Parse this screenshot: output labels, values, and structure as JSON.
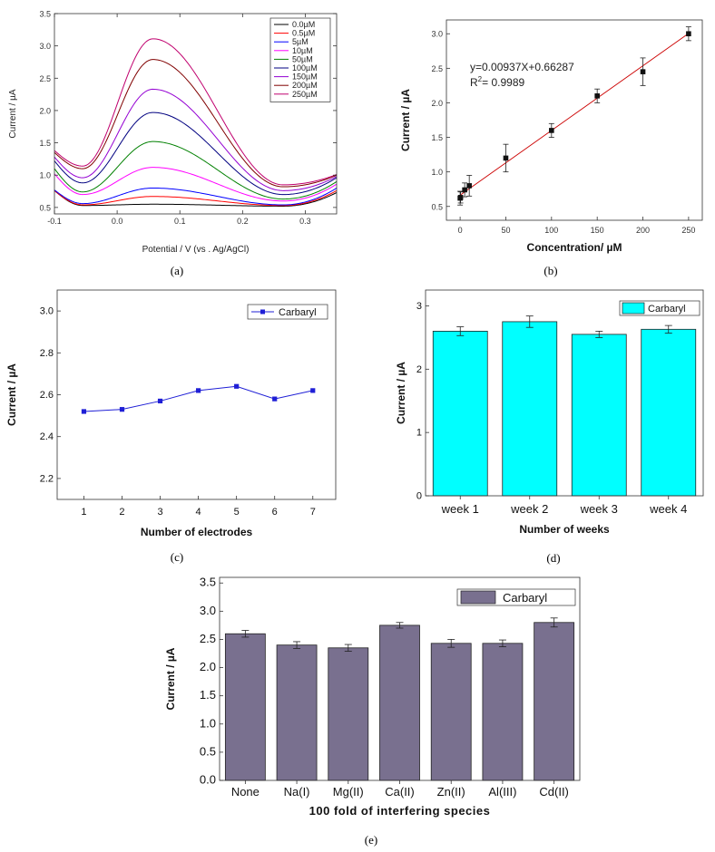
{
  "chart_data": [
    {
      "id": "a",
      "type": "line",
      "caption": "(a)",
      "xlabel": "Potential / V (vs . Ag/AgCl)",
      "ylabel": "Current / µA",
      "xlim": [
        -0.1,
        0.35
      ],
      "ylim": [
        0.4,
        3.5
      ],
      "xticks": [
        -0.1,
        0.0,
        0.1,
        0.2,
        0.3
      ],
      "xticklabels": [
        "-0.1",
        "0.0",
        "0.1",
        "0.2",
        "0.3"
      ],
      "yticks": [
        0.5,
        1.0,
        1.5,
        2.0,
        2.5,
        3.0,
        3.5
      ],
      "yticklabels": [
        "0.5",
        "1.0",
        "1.5",
        "2.0",
        "2.5",
        "3.0",
        "3.5"
      ],
      "series": [
        {
          "name": "0.0µM",
          "color": "#000000",
          "start": 0.76,
          "min": 0.53,
          "peak": 0.55,
          "valley": 0.52,
          "end": 0.73
        },
        {
          "name": "0.5µM",
          "color": "#ff0000",
          "start": 0.76,
          "min": 0.54,
          "peak": 0.67,
          "valley": 0.53,
          "end": 0.76
        },
        {
          "name": "5µM",
          "color": "#0000ff",
          "start": 0.77,
          "min": 0.56,
          "peak": 0.8,
          "valley": 0.54,
          "end": 0.8
        },
        {
          "name": "10µM",
          "color": "#ff00ff",
          "start": 1.02,
          "min": 0.7,
          "peak": 1.12,
          "valley": 0.6,
          "end": 0.86
        },
        {
          "name": "50µM",
          "color": "#008000",
          "start": 1.1,
          "min": 0.74,
          "peak": 1.52,
          "valley": 0.63,
          "end": 0.9
        },
        {
          "name": "100µM",
          "color": "#000080",
          "start": 1.22,
          "min": 0.88,
          "peak": 1.97,
          "valley": 0.7,
          "end": 0.96
        },
        {
          "name": "150µM",
          "color": "#9400d3",
          "start": 1.28,
          "min": 0.96,
          "peak": 2.33,
          "valley": 0.76,
          "end": 0.98
        },
        {
          "name": "200µM",
          "color": "#800000",
          "start": 1.35,
          "min": 1.1,
          "peak": 2.79,
          "valley": 0.82,
          "end": 1.0
        },
        {
          "name": "250µM",
          "color": "#c0006e",
          "start": 1.38,
          "min": 1.14,
          "peak": 3.11,
          "valley": 0.85,
          "end": 1.01
        }
      ],
      "shape_positions": {
        "min_x": -0.055,
        "peak_x": 0.057,
        "valley_x": 0.265
      }
    },
    {
      "id": "b",
      "type": "scatter",
      "caption": "(b)",
      "xlabel": "Concentration/ µM",
      "ylabel": "Current / µA",
      "xlim": [
        -15,
        265
      ],
      "ylim": [
        0.3,
        3.2
      ],
      "xticks": [
        0,
        50,
        100,
        150,
        200,
        250
      ],
      "xticklabels": [
        "0",
        "50",
        "100",
        "150",
        "200",
        "250"
      ],
      "yticks": [
        0.5,
        1.0,
        1.5,
        2.0,
        2.5,
        3.0
      ],
      "yticklabels": [
        "0.5",
        "1.0",
        "1.5",
        "2.0",
        "2.5",
        "3.0"
      ],
      "x": [
        0,
        0.5,
        5,
        10,
        50,
        100,
        150,
        200,
        250
      ],
      "y": [
        0.62,
        0.63,
        0.74,
        0.8,
        1.2,
        1.6,
        2.1,
        2.45,
        3.0
      ],
      "yerr": [
        0.1,
        0.08,
        0.1,
        0.15,
        0.2,
        0.1,
        0.1,
        0.2,
        0.1
      ],
      "fit": {
        "slope": 0.00937,
        "intercept": 0.66287,
        "color": "#cc0000"
      },
      "equation": "y=0.00937X+0.66287",
      "r2_prefix": "R",
      "r2_sup": "2",
      "r2_value": "= 0.9989"
    },
    {
      "id": "c",
      "type": "line",
      "caption": "(c)",
      "xlabel": "Number of electrodes",
      "ylabel": "Current / µA",
      "xlim": [
        0.3,
        7.6
      ],
      "ylim": [
        2.1,
        3.1
      ],
      "xticks": [
        1,
        2,
        3,
        4,
        5,
        6,
        7
      ],
      "xticklabels": [
        "1",
        "2",
        "3",
        "4",
        "5",
        "6",
        "7"
      ],
      "yticks": [
        2.2,
        2.4,
        2.6,
        2.8,
        3.0
      ],
      "yticklabels": [
        "2.2",
        "2.4",
        "2.6",
        "2.8",
        "3.0"
      ],
      "x": [
        1,
        2,
        3,
        4,
        5,
        6,
        7
      ],
      "y": [
        2.52,
        2.53,
        2.57,
        2.62,
        2.64,
        2.58,
        2.62
      ],
      "series_name": "Carbaryl",
      "color": "#1f1fd6"
    },
    {
      "id": "d",
      "type": "bar",
      "caption": "(d)",
      "xlabel": "Number of weeks",
      "ylabel": "Current / µA",
      "ylim": [
        0,
        3.25
      ],
      "yticks": [
        0,
        1,
        2,
        3
      ],
      "yticklabels": [
        "0",
        "1",
        "2",
        "3"
      ],
      "categories": [
        "week 1",
        "week 2",
        "week 3",
        "week 4"
      ],
      "values": [
        2.6,
        2.75,
        2.55,
        2.63
      ],
      "yerr": [
        0.07,
        0.09,
        0.05,
        0.06
      ],
      "series_name": "Carbaryl",
      "color": "#00ffff"
    },
    {
      "id": "e",
      "type": "bar",
      "caption": "(e)",
      "xlabel": "100 fold of interfering species",
      "ylabel": "Current / µA",
      "ylim": [
        0,
        3.6
      ],
      "yticks": [
        0.0,
        0.5,
        1.0,
        1.5,
        2.0,
        2.5,
        3.0,
        3.5
      ],
      "yticklabels": [
        "0.0",
        "0.5",
        "1.0",
        "1.5",
        "2.0",
        "2.5",
        "3.0",
        "3.5"
      ],
      "categories": [
        "None",
        "Na(I)",
        "Mg(II)",
        "Ca(II)",
        "Zn(II)",
        "Al(III)",
        "Cd(II)"
      ],
      "values": [
        2.6,
        2.4,
        2.35,
        2.75,
        2.43,
        2.43,
        2.8
      ],
      "yerr": [
        0.06,
        0.06,
        0.06,
        0.05,
        0.07,
        0.06,
        0.08
      ],
      "series_name": "Carbaryl",
      "color": "#79708f"
    }
  ]
}
